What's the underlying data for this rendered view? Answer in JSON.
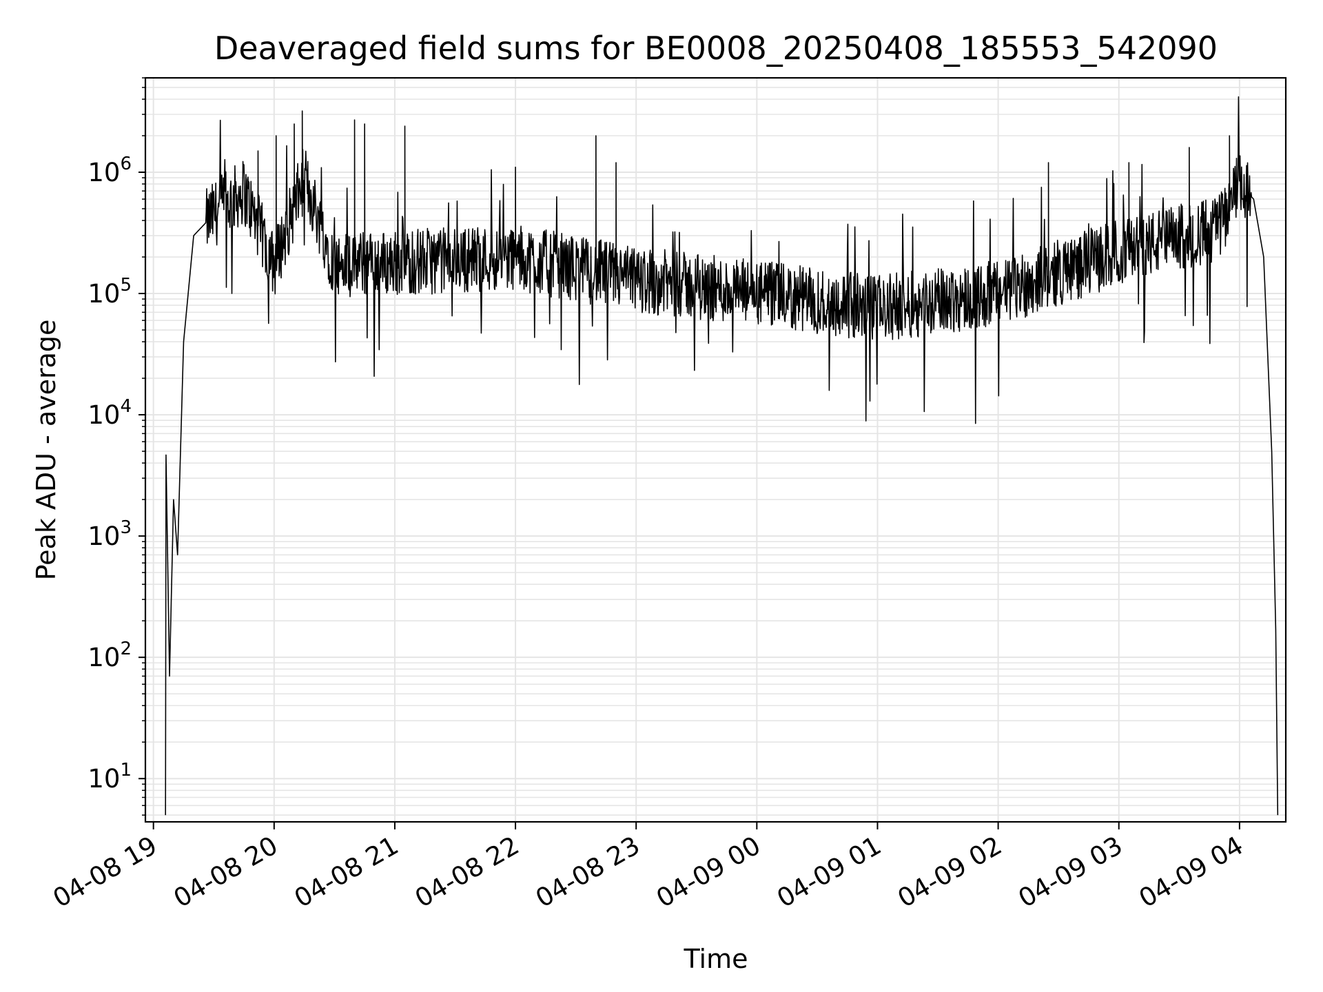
{
  "chart_data": {
    "type": "line",
    "title": "Deaveraged field sums for BE0008_20250408_185553_542090",
    "xlabel": "Time",
    "ylabel": "Peak ADU - average",
    "yscale": "log",
    "ylim": [
      4.4,
      6000000
    ],
    "xlim": [
      "2025-04-08 18:56",
      "2025-04-09 04:23"
    ],
    "grid": true,
    "grid_which": "both",
    "line_color": "#000000",
    "grid_color": "#e5e5e5",
    "x_ticks": [
      "04-08 19",
      "04-08 20",
      "04-08 21",
      "04-08 22",
      "04-08 23",
      "04-09 00",
      "04-09 01",
      "04-09 02",
      "04-09 03",
      "04-09 04"
    ],
    "y_ticks": [
      {
        "base": "10",
        "exp": "1",
        "value": 10
      },
      {
        "base": "10",
        "exp": "2",
        "value": 100
      },
      {
        "base": "10",
        "exp": "3",
        "value": 1000
      },
      {
        "base": "10",
        "exp": "4",
        "value": 10000
      },
      {
        "base": "10",
        "exp": "5",
        "value": 100000
      },
      {
        "base": "10",
        "exp": "6",
        "value": 1000000
      }
    ],
    "series": [
      {
        "values_note": "noisy trace; representative key points below (time, value)",
        "key_points": [
          [
            "2025-04-08 19:06",
            5
          ],
          [
            "2025-04-08 19:06",
            8500
          ],
          [
            "2025-04-08 19:08",
            70
          ],
          [
            "2025-04-08 19:10",
            2000
          ],
          [
            "2025-04-08 19:12",
            700
          ],
          [
            "2025-04-08 19:15",
            40000
          ],
          [
            "2025-04-08 19:20",
            300000
          ],
          [
            "2025-04-08 19:30",
            450000
          ],
          [
            "2025-04-08 19:45",
            700000
          ],
          [
            "2025-04-08 20:00",
            170000
          ],
          [
            "2025-04-08 20:15",
            900000
          ],
          [
            "2025-04-08 20:30",
            170000
          ],
          [
            "2025-04-08 21:00",
            180000
          ],
          [
            "2025-04-08 22:00",
            200000
          ],
          [
            "2025-04-08 23:00",
            130000
          ],
          [
            "2025-04-09 00:00",
            100000
          ],
          [
            "2025-04-09 01:00",
            75000
          ],
          [
            "2025-04-09 02:00",
            100000
          ],
          [
            "2025-04-09 03:00",
            220000
          ],
          [
            "2025-04-09 03:50",
            350000
          ],
          [
            "2025-04-09 04:00",
            800000
          ],
          [
            "2025-04-09 04:07",
            600000
          ],
          [
            "2025-04-09 04:12",
            200000
          ],
          [
            "2025-04-09 04:16",
            5000
          ],
          [
            "2025-04-09 04:18",
            170
          ],
          [
            "2025-04-09 04:19",
            5
          ]
        ],
        "spikes": [
          [
            "2025-04-08 19:52",
            1500000
          ],
          [
            "2025-04-08 20:01",
            2000000
          ],
          [
            "2025-04-08 20:10",
            2500000
          ],
          [
            "2025-04-08 20:14",
            3200000
          ],
          [
            "2025-04-08 20:40",
            2700000
          ],
          [
            "2025-04-08 20:45",
            2500000
          ],
          [
            "2025-04-08 21:05",
            2400000
          ],
          [
            "2025-04-08 22:00",
            1100000
          ],
          [
            "2025-04-08 22:40",
            2000000
          ],
          [
            "2025-04-08 22:50",
            1200000
          ],
          [
            "2025-04-09 02:25",
            1200000
          ],
          [
            "2025-04-09 03:05",
            1200000
          ],
          [
            "2025-04-09 03:35",
            1600000
          ],
          [
            "2025-04-09 03:55",
            2000000
          ]
        ]
      }
    ]
  }
}
